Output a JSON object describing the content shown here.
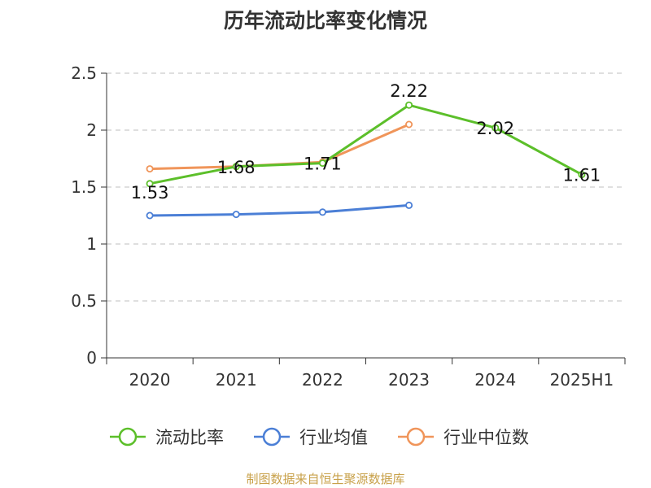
{
  "chart_data": {
    "type": "line",
    "title": "历年流动比率变化情况",
    "categories": [
      "2020",
      "2021",
      "2022",
      "2023",
      "2024",
      "2025H1"
    ],
    "ylim": [
      0,
      2.5
    ],
    "yticks": [
      "0",
      "0.5",
      "1",
      "1.5",
      "2",
      "2.5"
    ],
    "grid": true,
    "legend_position": "bottom",
    "series": [
      {
        "name": "流动比率",
        "color": "#5cbf2a",
        "values": [
          1.53,
          1.68,
          1.71,
          2.22,
          2.02,
          1.61
        ],
        "labels": [
          "1.53",
          "1.68",
          "1.71",
          "2.22",
          "2.02",
          "1.61"
        ]
      },
      {
        "name": "行业均值",
        "color": "#4b7fd6",
        "values": [
          1.25,
          1.26,
          1.28,
          1.34,
          null,
          null
        ]
      },
      {
        "name": "行业中位数",
        "color": "#f0955a",
        "values": [
          1.66,
          1.68,
          1.72,
          2.05,
          null,
          null
        ]
      }
    ]
  },
  "footer": {
    "source": "制图数据来自恒生聚源数据库"
  }
}
